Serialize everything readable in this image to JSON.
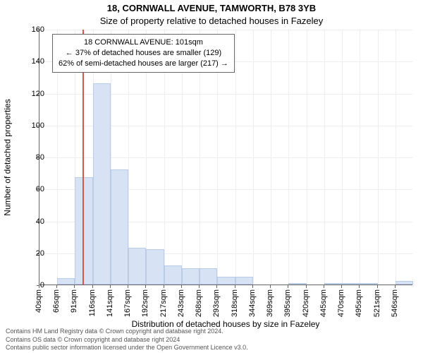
{
  "title_line1": "18, CORNWALL AVENUE, TAMWORTH, B78 3YB",
  "title_line2": "Size of property relative to detached houses in Fazeley",
  "info_box": {
    "line1": "18 CORNWALL AVENUE: 101sqm",
    "line2": "← 37% of detached houses are smaller (129)",
    "line3": "62% of semi-detached houses are larger (217) →"
  },
  "chart": {
    "type": "histogram",
    "ylabel": "Number of detached properties",
    "xlabel": "Distribution of detached houses by size in Fazeley",
    "ylim": [
      0,
      160
    ],
    "ytick_step": 20,
    "yticks": [
      0,
      20,
      40,
      60,
      80,
      100,
      120,
      140,
      160
    ],
    "x_categories": [
      "40sqm",
      "66sqm",
      "91sqm",
      "116sqm",
      "141sqm",
      "167sqm",
      "192sqm",
      "217sqm",
      "243sqm",
      "268sqm",
      "293sqm",
      "318sqm",
      "344sqm",
      "369sqm",
      "395sqm",
      "420sqm",
      "445sqm",
      "470sqm",
      "495sqm",
      "521sqm",
      "546sqm"
    ],
    "bar_values": [
      0,
      4,
      67,
      126,
      72,
      23,
      22,
      12,
      10,
      10,
      5,
      5,
      0,
      0,
      1,
      0,
      1,
      1,
      1,
      0,
      2
    ],
    "marker_value_sqm": 101,
    "marker_index_between": [
      2,
      3
    ],
    "marker_fraction_between": 0.4,
    "bar_fill": "#d7e3f4",
    "bar_border": "#b9cbe6",
    "marker_color": "#d9534f",
    "grid_color": "#eeeef2",
    "axis_color": "#666666",
    "background": "#ffffff",
    "title_fontsize": 13,
    "label_fontsize": 12,
    "tick_fontsize": 11,
    "infobox_fontsize": 11
  },
  "credit": {
    "line1": "Contains HM Land Registry data © Crown copyright and database right 2024.",
    "line2": "Contains OS data © Crown copyright and database right 2024",
    "line3": "Contains public sector information licensed under the Open Government Licence v3.0."
  }
}
